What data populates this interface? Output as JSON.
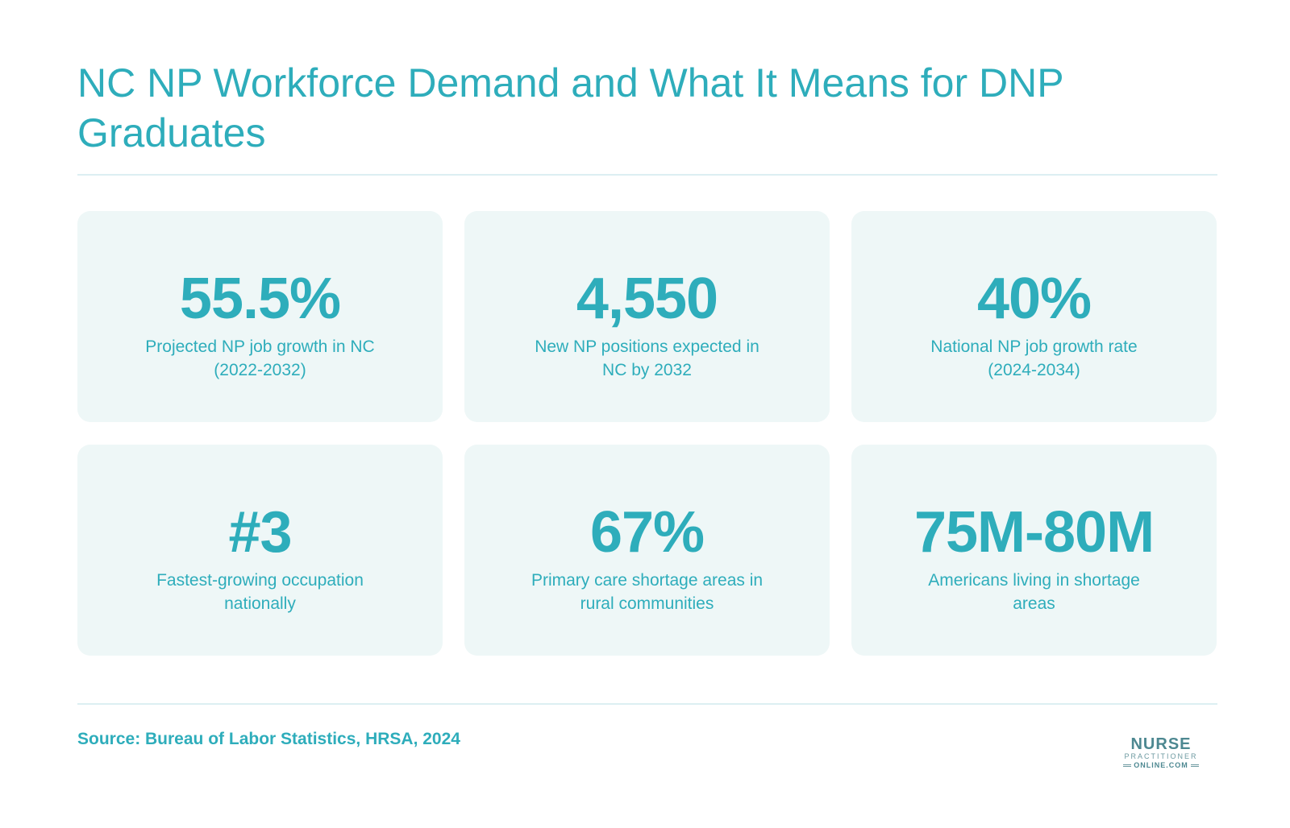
{
  "header": {
    "title": "NC NP Workforce Demand and What It Means for DNP Graduates"
  },
  "stats": [
    {
      "value": "55.5%",
      "label": "Projected NP job growth in NC (2022-2032)"
    },
    {
      "value": "4,550",
      "label": "New NP positions expected in NC by 2032"
    },
    {
      "value": "40%",
      "label": "National NP job growth rate (2024-2034)"
    },
    {
      "value": "#3",
      "label": "Fastest-growing occupation nationally"
    },
    {
      "value": "67%",
      "label": "Primary care shortage areas in rural communities"
    },
    {
      "value": "75M-80M",
      "label": "Americans living in shortage areas"
    }
  ],
  "footer": {
    "source": "Source: Bureau of Labor Statistics, HRSA, 2024",
    "logo": {
      "line1": "NURSE",
      "line2": "PRACTITIONER",
      "line3": "ONLINE.COM"
    }
  },
  "colors": {
    "accent": "#2eadbb",
    "card_bg": "#eef7f7",
    "rule": "#dceff2"
  }
}
